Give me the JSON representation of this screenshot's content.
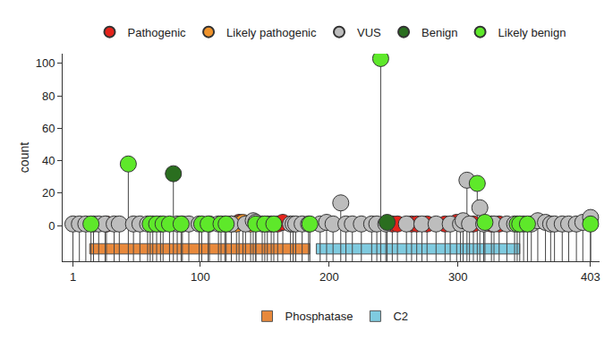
{
  "chart_data": {
    "type": "lollipop",
    "ylabel": "count",
    "xlim": [
      -7,
      410
    ],
    "xticks": [
      1,
      100,
      200,
      300,
      403
    ],
    "ylim": [
      -22,
      106
    ],
    "yticks": [
      0,
      20,
      40,
      60,
      80,
      100
    ],
    "series": [
      {
        "name": "Pathogenic",
        "color": "#e5231b",
        "x": [
          27,
          124,
          130,
          155,
          160,
          164,
          249,
          253,
          264,
          268,
          276,
          290,
          299,
          312,
          326,
          332
        ],
        "values": [
          1,
          1,
          2,
          1,
          1,
          2,
          1,
          1,
          1,
          1,
          1,
          1,
          2,
          1,
          1,
          1
        ]
      },
      {
        "name": "Likely pathogenic",
        "color": "#f0932b",
        "x": [
          128,
          133,
          139
        ],
        "values": [
          1,
          2,
          1
        ]
      },
      {
        "name": "VUS",
        "color": "#bdbdbd",
        "x": [
          1,
          6,
          11,
          17,
          21,
          26,
          33,
          37,
          48,
          53,
          59,
          63,
          69,
          82,
          86,
          91,
          99,
          107,
          114,
          119,
          124,
          135,
          141,
          143,
          148,
          152,
          170,
          172,
          174,
          179,
          184,
          193,
          198,
          203,
          209,
          213,
          218,
          225,
          233,
          237,
          244,
          260,
          272,
          283,
          294,
          302,
          304,
          307,
          309,
          317,
          320,
          328,
          338,
          344,
          351,
          357,
          362,
          368,
          372,
          375,
          381,
          386,
          392,
          397,
          403
        ],
        "values": [
          1,
          1,
          1,
          1,
          1,
          1,
          1,
          1,
          1,
          1,
          1,
          1,
          1,
          1,
          1,
          1,
          1,
          1,
          1,
          1,
          1,
          1,
          3,
          2,
          1,
          1,
          1,
          1,
          1,
          1,
          1,
          1,
          2,
          1,
          14,
          1,
          1,
          1,
          1,
          1,
          1,
          1,
          1,
          1,
          1,
          1,
          3,
          28,
          1,
          11,
          1,
          1,
          1,
          1,
          1,
          1,
          3,
          2,
          1,
          1,
          1,
          1,
          1,
          2,
          5
        ]
      },
      {
        "name": "Benign",
        "color": "#2a6e1f",
        "x": [
          79,
          245
        ],
        "values": [
          32,
          2
        ]
      },
      {
        "name": "Likely benign",
        "color": "#5ee82a",
        "x": [
          15,
          44,
          61,
          66,
          71,
          76,
          85,
          101,
          106,
          116,
          120,
          143,
          150,
          157,
          185,
          240,
          315,
          321,
          346,
          348,
          354,
          403
        ],
        "values": [
          1,
          38,
          1,
          1,
          1,
          1,
          1,
          1,
          1,
          1,
          1,
          1,
          1,
          1,
          1,
          103,
          26,
          2,
          1,
          1,
          1,
          1
        ]
      }
    ],
    "domains": [
      {
        "name": "Phosphatase",
        "start": 14,
        "end": 185,
        "color": "#e8893c"
      },
      {
        "name": "C2",
        "start": 190,
        "end": 348,
        "color": "#7fcbe0"
      }
    ]
  }
}
